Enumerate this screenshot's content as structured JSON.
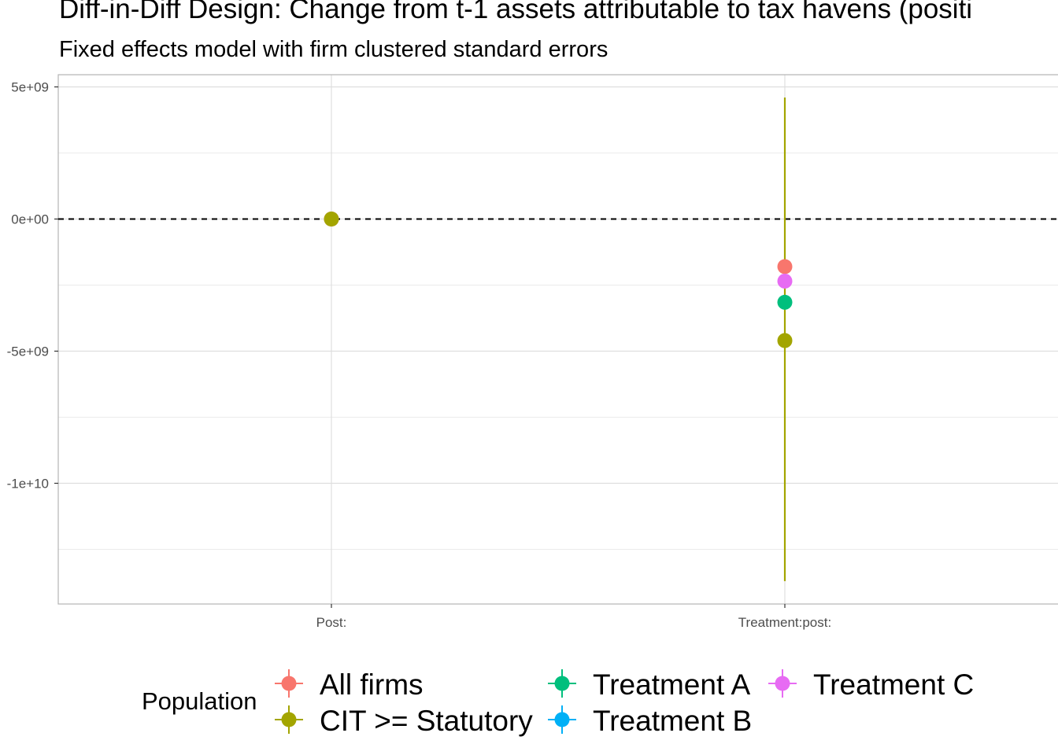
{
  "title": "Diff-in-Diff Design: Change from t-1 assets attributable to tax havens (positi",
  "subtitle": "Fixed effects model with firm clustered standard errors",
  "legend": {
    "title": "Population",
    "items": [
      {
        "label": "All firms",
        "color": "#F8766D"
      },
      {
        "label": "CIT >= Statutory",
        "color": "#A3A500"
      },
      {
        "label": "Treatment A",
        "color": "#00BF7D"
      },
      {
        "label": "Treatment B",
        "color": "#00B0F6"
      },
      {
        "label": "Treatment C",
        "color": "#E76BF3"
      }
    ]
  },
  "chart_data": {
    "type": "scatter",
    "categories": [
      "Post:",
      "Treatment:post:"
    ],
    "ylim": [
      -14500000000,
      5500000000
    ],
    "yticks": [
      {
        "value": 5000000000,
        "label": "5e+09"
      },
      {
        "value": 0,
        "label": "0e+00"
      },
      {
        "value": -5000000000,
        "label": "-5e+09"
      },
      {
        "value": -10000000000,
        "label": "-1e+10"
      }
    ],
    "reference_line": 0,
    "grid": true,
    "legend_position": "bottom",
    "series": [
      {
        "name": "All firms",
        "color": "#F8766D",
        "points": [
          {
            "category": "Post:",
            "estimate": 0,
            "low": 0,
            "high": 0
          },
          {
            "category": "Treatment:post:",
            "estimate": -1800000000,
            "low": -1800000000,
            "high": -1800000000
          }
        ]
      },
      {
        "name": "CIT >= Statutory",
        "color": "#A3A500",
        "points": [
          {
            "category": "Post:",
            "estimate": 0,
            "low": 0,
            "high": 0
          },
          {
            "category": "Treatment:post:",
            "estimate": -4600000000,
            "low": -13700000000,
            "high": 4600000000
          }
        ]
      },
      {
        "name": "Treatment A",
        "color": "#00BF7D",
        "points": [
          {
            "category": "Treatment:post:",
            "estimate": -3150000000,
            "low": -3150000000,
            "high": -3150000000
          }
        ]
      },
      {
        "name": "Treatment B",
        "color": "#00B0F6",
        "points": []
      },
      {
        "name": "Treatment C",
        "color": "#E76BF3",
        "points": [
          {
            "category": "Treatment:post:",
            "estimate": -2350000000,
            "low": -2350000000,
            "high": -2350000000
          }
        ]
      }
    ]
  }
}
